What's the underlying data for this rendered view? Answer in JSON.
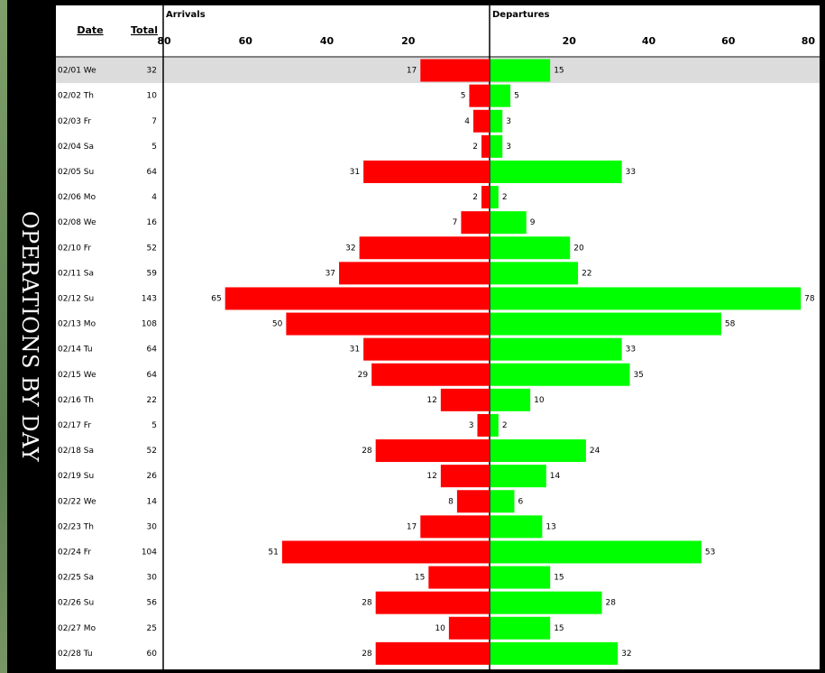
{
  "title": "OPERATIONS BY DAY",
  "colors": {
    "arrivals": "#ff0000",
    "departures": "#00ff00",
    "highlight_row": "#dcdcdc"
  },
  "headers": {
    "date": "Date",
    "total": "Total",
    "arrivals": "Arrivals",
    "departures": "Departures"
  },
  "chart_data": {
    "type": "bar",
    "orientation": "horizontal",
    "layout": "diverging",
    "title": "",
    "xlim_arrivals": [
      0,
      80
    ],
    "xlim_departures": [
      0,
      80
    ],
    "arrival_ticks": [
      "80",
      "60",
      "40",
      "20"
    ],
    "departure_ticks": [
      "20",
      "40",
      "60",
      "80"
    ],
    "highlight_row": 0,
    "rows": [
      {
        "date": "02/01 We",
        "total": "32",
        "arrivals": 17,
        "departures": 15
      },
      {
        "date": "02/02 Th",
        "total": "10",
        "arrivals": 5,
        "departures": 5
      },
      {
        "date": "02/03 Fr",
        "total": "7",
        "arrivals": 4,
        "departures": 3
      },
      {
        "date": "02/04 Sa",
        "total": "5",
        "arrivals": 2,
        "departures": 3
      },
      {
        "date": "02/05 Su",
        "total": "64",
        "arrivals": 31,
        "departures": 33
      },
      {
        "date": "02/06 Mo",
        "total": "4",
        "arrivals": 2,
        "departures": 2
      },
      {
        "date": "02/08 We",
        "total": "16",
        "arrivals": 7,
        "departures": 9
      },
      {
        "date": "02/10 Fr",
        "total": "52",
        "arrivals": 32,
        "departures": 20
      },
      {
        "date": "02/11 Sa",
        "total": "59",
        "arrivals": 37,
        "departures": 22
      },
      {
        "date": "02/12 Su",
        "total": "143",
        "arrivals": 65,
        "departures": 78
      },
      {
        "date": "02/13 Mo",
        "total": "108",
        "arrivals": 50,
        "departures": 58
      },
      {
        "date": "02/14 Tu",
        "total": "64",
        "arrivals": 31,
        "departures": 33
      },
      {
        "date": "02/15 We",
        "total": "64",
        "arrivals": 29,
        "departures": 35
      },
      {
        "date": "02/16 Th",
        "total": "22",
        "arrivals": 12,
        "departures": 10
      },
      {
        "date": "02/17 Fr",
        "total": "5",
        "arrivals": 3,
        "departures": 2
      },
      {
        "date": "02/18 Sa",
        "total": "52",
        "arrivals": 28,
        "departures": 24
      },
      {
        "date": "02/19 Su",
        "total": "26",
        "arrivals": 12,
        "departures": 14
      },
      {
        "date": "02/22 We",
        "total": "14",
        "arrivals": 8,
        "departures": 6
      },
      {
        "date": "02/23 Th",
        "total": "30",
        "arrivals": 17,
        "departures": 13
      },
      {
        "date": "02/24 Fr",
        "total": "104",
        "arrivals": 51,
        "departures": 53
      },
      {
        "date": "02/25 Sa",
        "total": "30",
        "arrivals": 15,
        "departures": 15
      },
      {
        "date": "02/26 Su",
        "total": "56",
        "arrivals": 28,
        "departures": 28
      },
      {
        "date": "02/27 Mo",
        "total": "25",
        "arrivals": 10,
        "departures": 15
      },
      {
        "date": "02/28 Tu",
        "total": "60",
        "arrivals": 28,
        "departures": 32
      }
    ]
  }
}
